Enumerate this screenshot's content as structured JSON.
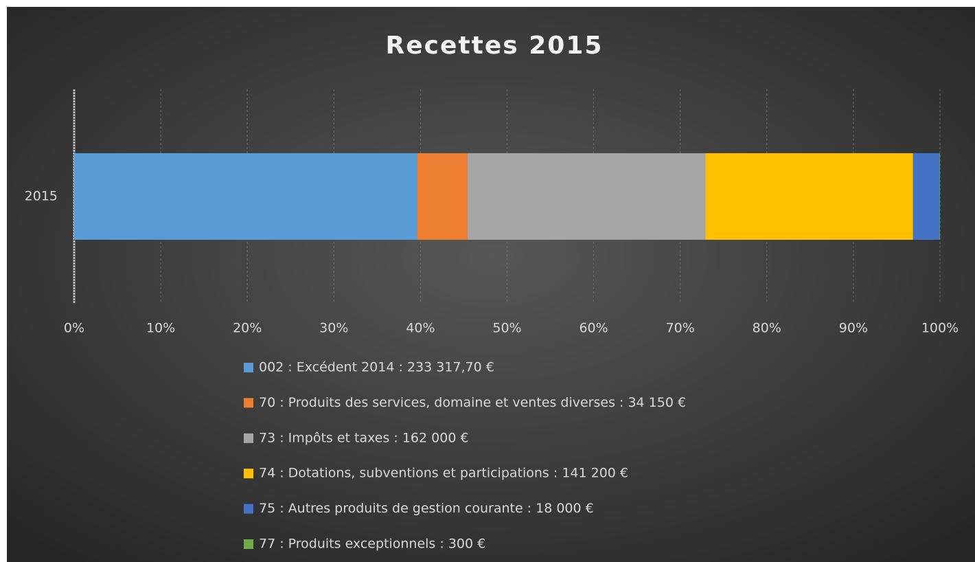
{
  "chart_data": {
    "type": "bar",
    "orientation": "horizontal",
    "stacking": "percent",
    "title": "Recettes 2015",
    "categories": [
      "2015"
    ],
    "series": [
      {
        "name": "002 : Excédent 2014 : 233 317,70 €",
        "color": "#5b9bd5",
        "values": [
          233317.7
        ]
      },
      {
        "name": "70 : Produits des services, domaine et ventes diverses : 34 150 €",
        "color": "#ed7d31",
        "values": [
          34150
        ]
      },
      {
        "name": "73 : Impôts et taxes : 162 000 €",
        "color": "#a5a5a5",
        "values": [
          162000
        ]
      },
      {
        "name": "74 : Dotations, subventions et participations : 141 200 €",
        "color": "#ffc000",
        "values": [
          141200
        ]
      },
      {
        "name": "75 : Autres produits de gestion courante : 18 000 €",
        "color": "#4472c4",
        "values": [
          18000
        ]
      },
      {
        "name": "77 : Produits exceptionnels : 300 €",
        "color": "#70ad47",
        "values": [
          300
        ]
      }
    ],
    "xlim": [
      0,
      100
    ],
    "xticks": [
      {
        "value": 0,
        "label": "0%"
      },
      {
        "value": 10,
        "label": "10%"
      },
      {
        "value": 20,
        "label": "20%"
      },
      {
        "value": 30,
        "label": "30%"
      },
      {
        "value": 40,
        "label": "40%"
      },
      {
        "value": 50,
        "label": "50%"
      },
      {
        "value": 60,
        "label": "60%"
      },
      {
        "value": 70,
        "label": "70%"
      },
      {
        "value": 80,
        "label": "80%"
      },
      {
        "value": 90,
        "label": "90%"
      },
      {
        "value": 100,
        "label": "100%"
      }
    ],
    "grid": true,
    "legend": "bottom"
  }
}
